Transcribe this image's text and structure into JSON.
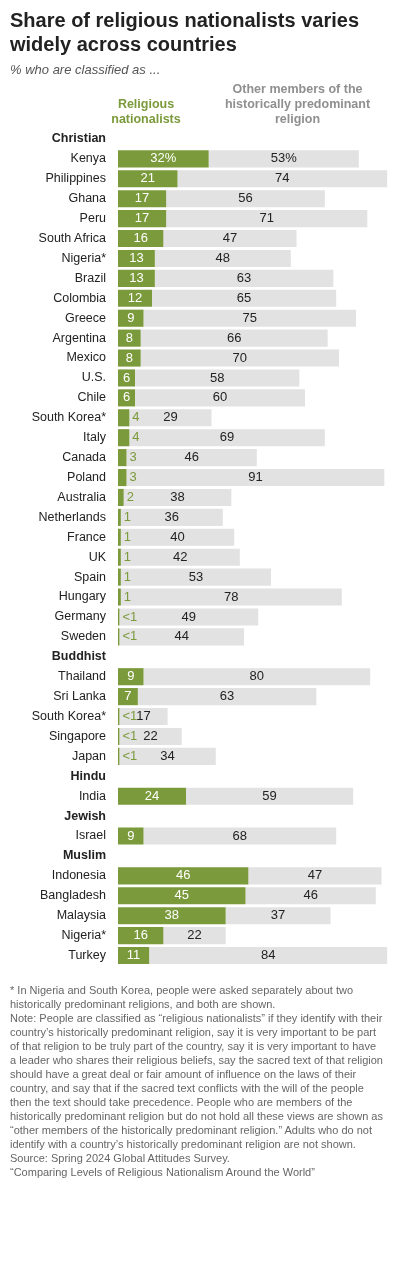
{
  "chart_data": {
    "type": "bar",
    "title": "Share of religious nationalists varies widely across countries",
    "subtitle": "% who are classified as ...",
    "orientation": "horizontal",
    "stacked": true,
    "legend": "top",
    "tick_labels": "y",
    "xlim": [
      0,
      96
    ],
    "categories": [
      "Christian",
      "Kenya",
      "Philippines",
      "Ghana",
      "Peru",
      "South Africa",
      "Nigeria*",
      "Brazil",
      "Colombia",
      "Greece",
      "Argentina",
      "Mexico",
      "U.S.",
      "Chile",
      "South Korea*",
      "Italy",
      "Canada",
      "Poland",
      "Australia",
      "Netherlands",
      "France",
      "UK",
      "Spain",
      "Hungary",
      "Germany",
      "Sweden",
      "Buddhist",
      "Thailand",
      "Sri Lanka",
      "South Korea*",
      "Singapore",
      "Japan",
      "Hindu",
      "India",
      "Jewish",
      "Israel",
      "Muslim",
      "Indonesia",
      "Bangladesh",
      "Malaysia",
      "Nigeria*",
      "Turkey"
    ],
    "series": [
      {
        "name": "Religious nationalists",
        "color": "#7b9a3b",
        "values": [
          null,
          32,
          21,
          17,
          17,
          16,
          13,
          13,
          12,
          9,
          8,
          8,
          6,
          6,
          4,
          4,
          3,
          3,
          2,
          1,
          1,
          1,
          1,
          1,
          0.5,
          0.5,
          null,
          9,
          7,
          0.5,
          0.5,
          0.5,
          null,
          24,
          null,
          9,
          null,
          46,
          45,
          38,
          16,
          11
        ],
        "value_labels": [
          null,
          "32%",
          "21",
          "17",
          "17",
          "16",
          "13",
          "13",
          "12",
          "9",
          "8",
          "8",
          "6",
          "6",
          "4",
          "4",
          "3",
          "3",
          "2",
          "1",
          "1",
          "1",
          "1",
          "1",
          "<1",
          "<1",
          null,
          "9",
          "7",
          "<1",
          "<1",
          "<1",
          null,
          "24",
          null,
          "9",
          null,
          "46",
          "45",
          "38",
          "16",
          "11"
        ]
      },
      {
        "name": "Other members of the historically predominant religion",
        "color": "#e2e2e2",
        "values": [
          null,
          53,
          74,
          56,
          71,
          47,
          48,
          63,
          65,
          75,
          66,
          70,
          58,
          60,
          29,
          69,
          46,
          91,
          38,
          36,
          40,
          42,
          53,
          78,
          49,
          44,
          null,
          80,
          63,
          17,
          22,
          34,
          null,
          59,
          null,
          68,
          null,
          47,
          46,
          37,
          22,
          84
        ],
        "value_labels": [
          null,
          "53%",
          "74",
          "56",
          "71",
          "47",
          "48",
          "63",
          "65",
          "75",
          "66",
          "70",
          "58",
          "60",
          "29",
          "69",
          "46",
          "91",
          "38",
          "36",
          "40",
          "42",
          "53",
          "78",
          "49",
          "44",
          null,
          "80",
          "63",
          "17",
          "22",
          "34",
          null,
          "59",
          null,
          "68",
          null,
          "47",
          "46",
          "37",
          "22",
          "84"
        ]
      }
    ],
    "annotations": [
      "* In Nigeria and South Korea, people were asked separately about two historically predominant religions, and both are shown.",
      "Note: People are classified as “religious nationalists” if they identify with their country’s historically predominant religion, say it is very important to be part of that religion to be truly part of the country, say it is very important to have a leader who shares their religious beliefs, say the sacred text of that religion should have a great deal or fair amount of influence on the laws of their country, and say that if the sacred text conflicts with the will of the people then the text should take precedence. People who are members of the historically predominant religion but do not hold all these views are shown as “other members of the historically predominant religion.” Adults who do not identify with a country’s historically predominant religion are not shown.",
      "Source: Spring 2024 Global Attitudes Survey.",
      "“Comparing Levels of Religious Nationalism Around the World”"
    ]
  }
}
